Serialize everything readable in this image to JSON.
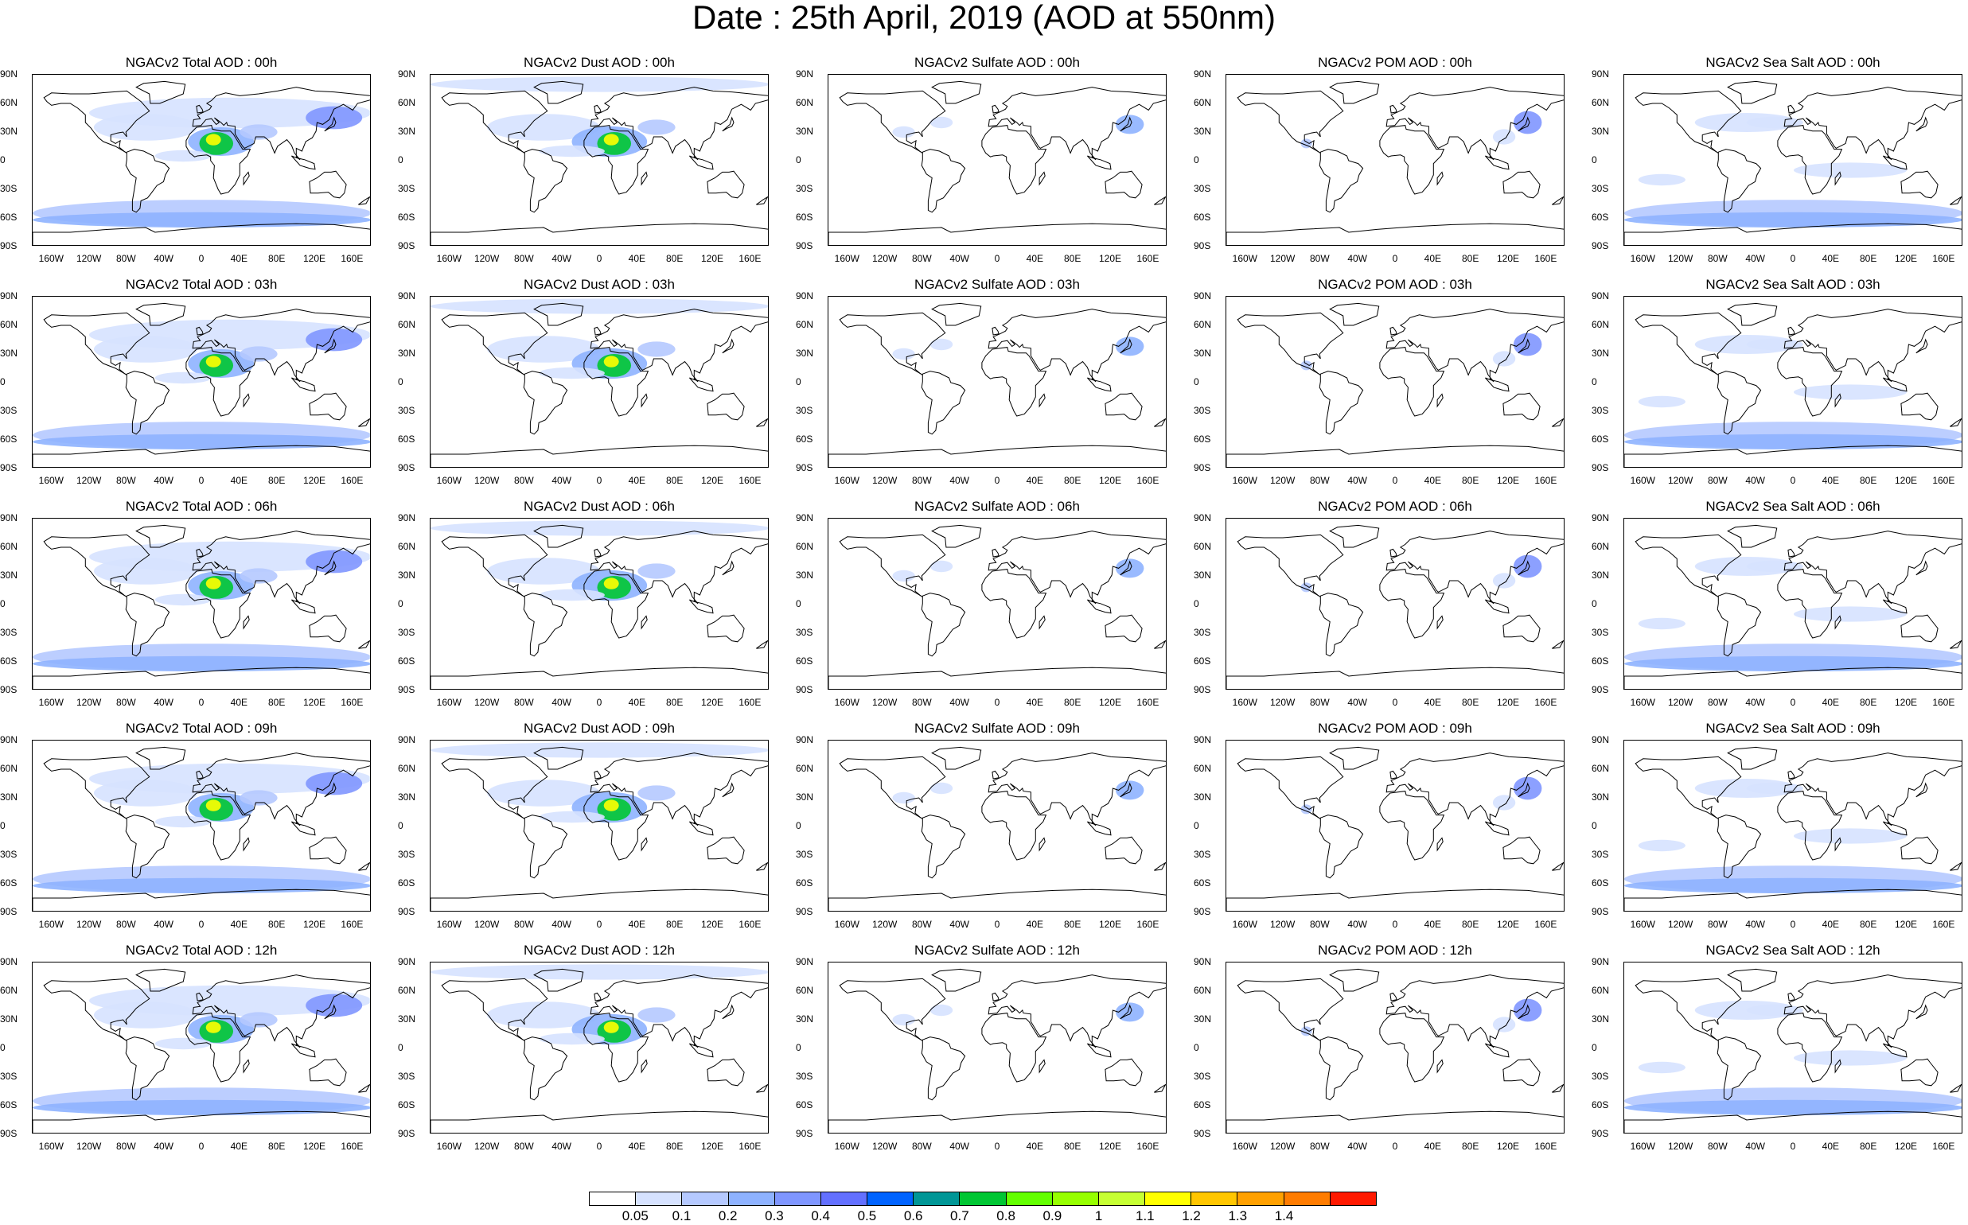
{
  "title": "Date : 25th April, 2019 (AOD at 550nm)",
  "lon_ticks": [
    "160W",
    "120W",
    "80W",
    "40W",
    "0",
    "40E",
    "80E",
    "120E",
    "160E"
  ],
  "lat_ticks": [
    "90N",
    "60N",
    "30N",
    "0",
    "30S",
    "60S",
    "90S"
  ],
  "rows": [
    [
      "NGACv2 Total AOD : 00h",
      "NGACv2 Dust AOD : 00h",
      "NGACv2 Sulfate AOD : 00h",
      "NGACv2 POM AOD : 00h",
      "NGACv2 Sea Salt AOD : 00h"
    ],
    [
      "NGACv2 Total AOD : 03h",
      "NGACv2 Dust AOD : 03h",
      "NGACv2 Sulfate AOD : 03h",
      "NGACv2 POM AOD : 03h",
      "NGACv2 Sea Salt AOD : 03h"
    ],
    [
      "NGACv2 Total AOD : 06h",
      "NGACv2 Dust AOD : 06h",
      "NGACv2 Sulfate AOD : 06h",
      "NGACv2 POM AOD : 06h",
      "NGACv2 Sea Salt AOD : 06h"
    ],
    [
      "NGACv2 Total AOD : 09h",
      "NGACv2 Dust AOD : 09h",
      "NGACv2 Sulfate AOD : 09h",
      "NGACv2 POM AOD : 09h",
      "NGACv2 Sea Salt  AOD : 09h"
    ],
    [
      "NGACv2 Total AOD : 12h",
      "NGACv2 Dust AOD : 12h",
      "NGACv2 Sulfate AOD : 12h",
      "NGACv2 POM  AOD : 12h",
      "NGACv2 Sea Salt  AOD : 12h"
    ]
  ],
  "colorbar": {
    "colors": [
      "#ffffff",
      "#d6e2ff",
      "#b5c9ff",
      "#8eb2ff",
      "#7f96ff",
      "#6370ff",
      "#0063ff",
      "#009696",
      "#00c633",
      "#63ff00",
      "#96ff00",
      "#c6ff33",
      "#ffff00",
      "#ffc600",
      "#ffa000",
      "#ff7c00",
      "#ff1900"
    ],
    "labels": [
      "0.05",
      "0.1",
      "0.2",
      "0.3",
      "0.4",
      "0.5",
      "0.6",
      "0.7",
      "0.8",
      "0.9",
      "1",
      "1.1",
      "1.2",
      "1.3",
      "1.4"
    ]
  }
}
